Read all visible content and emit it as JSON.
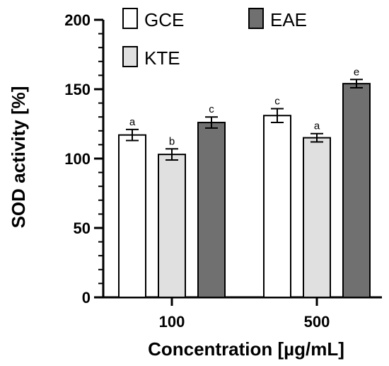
{
  "chart_data": {
    "type": "bar",
    "ylabel": "SOD activity [%]",
    "xlabel": "Concentration [µg/mL]",
    "categories": [
      "100",
      "500"
    ],
    "ylim": [
      0,
      200
    ],
    "yticks": [
      0,
      50,
      100,
      150,
      200
    ],
    "legend_position": "top",
    "grid": false,
    "series": [
      {
        "name": "GCE",
        "values": [
          117,
          131
        ],
        "errors": [
          4,
          5
        ],
        "labels": [
          "a",
          "c"
        ],
        "color": "#ffffff"
      },
      {
        "name": "KTE",
        "values": [
          103,
          115
        ],
        "errors": [
          4,
          3
        ],
        "labels": [
          "b",
          "a"
        ],
        "color": "#e0e0e0"
      },
      {
        "name": "EAE",
        "values": [
          126,
          154
        ],
        "errors": [
          4,
          3
        ],
        "labels": [
          "c",
          "e"
        ],
        "color": "#707070"
      }
    ]
  }
}
